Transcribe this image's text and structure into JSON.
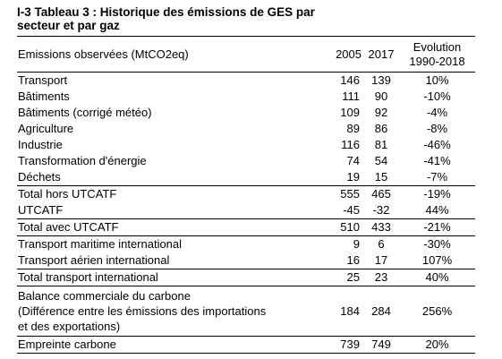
{
  "title_line1": "I-3 Tableau 3 : Historique des émissions de GES par",
  "title_line2": "secteur et par gaz",
  "header": {
    "label": "Emissions observées (MtCO2eq)",
    "y2005": "2005",
    "y2017": "2017",
    "evo_line1": "Evolution",
    "evo_line2": "1990-2018"
  },
  "rows": [
    {
      "label": "Transport",
      "v2005": "146",
      "v2017": "139",
      "evo": "10%"
    },
    {
      "label": "Bâtiments",
      "v2005": "111",
      "v2017": "90",
      "evo": "-10%"
    },
    {
      "label": "Bâtiments (corrigé météo)",
      "v2005": "109",
      "v2017": "92",
      "evo": "-4%"
    },
    {
      "label": "Agriculture",
      "v2005": "89",
      "v2017": "86",
      "evo": "-8%"
    },
    {
      "label": "Industrie",
      "v2005": "116",
      "v2017": "81",
      "evo": "-46%"
    },
    {
      "label": "Transformation d'énergie",
      "v2005": "74",
      "v2017": "54",
      "evo": "-41%"
    },
    {
      "label": "Déchets",
      "v2005": "19",
      "v2017": "15",
      "evo": "-7%"
    },
    {
      "label": "Total hors UTCATF",
      "v2005": "555",
      "v2017": "465",
      "evo": "-19%"
    },
    {
      "label": "UTCATF",
      "v2005": "-45",
      "v2017": "-32",
      "evo": "44%"
    },
    {
      "label": "Total avec UTCATF",
      "v2005": "510",
      "v2017": "433",
      "evo": "-21%"
    },
    {
      "label": "Transport maritime international",
      "v2005": "9",
      "v2017": "6",
      "evo": "-30%"
    },
    {
      "label": "Transport aérien international",
      "v2005": "16",
      "v2017": "17",
      "evo": "107%"
    },
    {
      "label": "Total transport international",
      "v2005": "25",
      "v2017": "23",
      "evo": "40%"
    },
    {
      "label_line1": "Balance commerciale du carbone",
      "label_line2": "(Différence entre les émissions des importations",
      "label_line3": "et des exportations)",
      "v2005": "184",
      "v2017": "284",
      "evo": "256%"
    },
    {
      "label": "Empreinte carbone",
      "v2005": "739",
      "v2017": "749",
      "evo": "20%"
    }
  ]
}
